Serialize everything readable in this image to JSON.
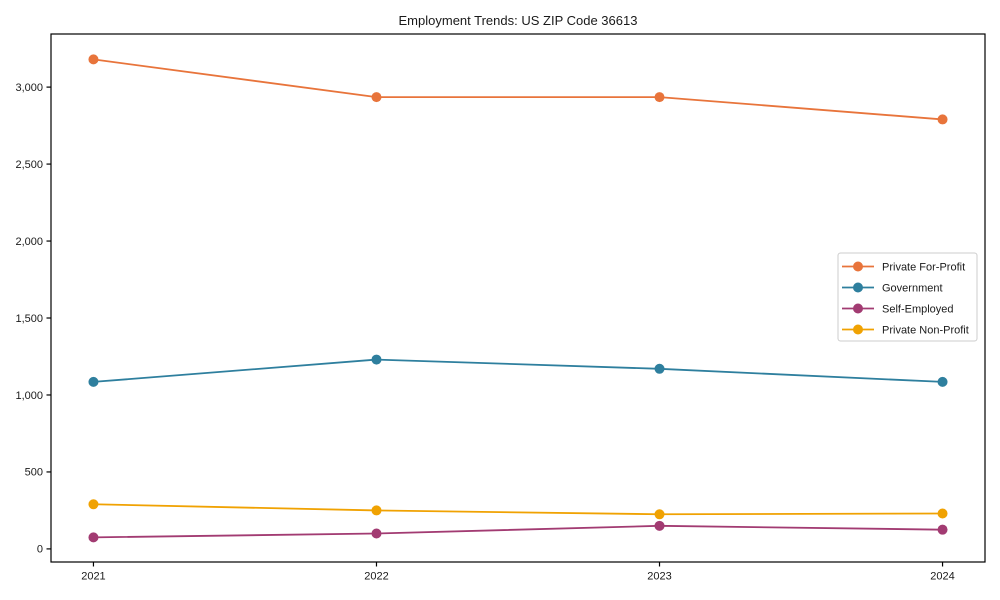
{
  "chart_data": {
    "type": "line",
    "title": "Employment Trends: US ZIP Code 36613",
    "xlabel": "",
    "ylabel": "",
    "x": [
      2021,
      2022,
      2023,
      2024
    ],
    "x_tick_labels": [
      "2021",
      "2022",
      "2023",
      "2024"
    ],
    "series": [
      {
        "name": "Private For-Profit",
        "color": "#e8743b",
        "values": [
          3180,
          2935,
          2935,
          2790
        ]
      },
      {
        "name": "Government",
        "color": "#2e7f9e",
        "values": [
          1085,
          1230,
          1170,
          1085
        ]
      },
      {
        "name": "Self-Employed",
        "color": "#a23b72",
        "values": [
          75,
          100,
          150,
          125
        ]
      },
      {
        "name": "Private Non-Profit",
        "color": "#f0a202",
        "values": [
          290,
          250,
          225,
          230
        ]
      }
    ],
    "yticks": [
      0,
      500,
      1000,
      1500,
      2000,
      2500,
      3000
    ],
    "ytick_labels": [
      "0",
      "500",
      "1,000",
      "1,500",
      "2,000",
      "2,500",
      "3,000"
    ],
    "xlim": [
      2020.85,
      2024.15
    ],
    "ylim": [
      -85,
      3345
    ],
    "grid": false,
    "legend_position": "center right",
    "marker": "circle",
    "marker_radius": 5,
    "line_width": 1.8,
    "axis_color": "#000000",
    "text_color": "#1a1a1a",
    "background_color": "#ffffff",
    "legend_border_color": "#cccccc",
    "legend_background": "#ffffff"
  }
}
